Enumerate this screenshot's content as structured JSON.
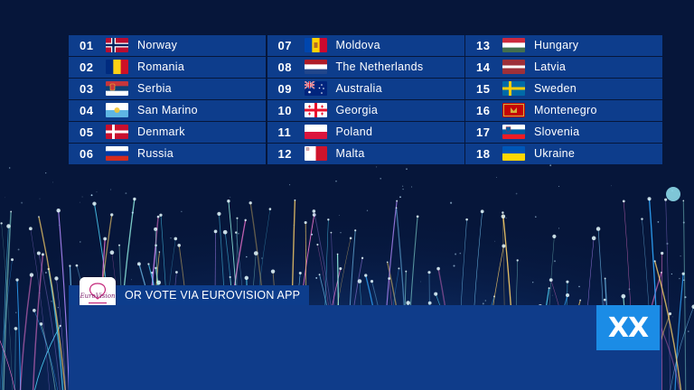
{
  "scoreboard": {
    "columns": [
      [
        {
          "rank": "01",
          "country": "Norway",
          "flag": "norway-flag"
        },
        {
          "rank": "02",
          "country": "Romania",
          "flag": "romania-flag"
        },
        {
          "rank": "03",
          "country": "Serbia",
          "flag": "serbia-flag"
        },
        {
          "rank": "04",
          "country": "San Marino",
          "flag": "san-marino-flag"
        },
        {
          "rank": "05",
          "country": "Denmark",
          "flag": "denmark-flag"
        },
        {
          "rank": "06",
          "country": "Russia",
          "flag": "russia-flag"
        }
      ],
      [
        {
          "rank": "07",
          "country": "Moldova",
          "flag": "moldova-flag"
        },
        {
          "rank": "08",
          "country": "The Netherlands",
          "flag": "netherlands-flag"
        },
        {
          "rank": "09",
          "country": "Australia",
          "flag": "australia-flag"
        },
        {
          "rank": "10",
          "country": "Georgia",
          "flag": "georgia-flag"
        },
        {
          "rank": "11",
          "country": "Poland",
          "flag": "poland-flag"
        },
        {
          "rank": "12",
          "country": "Malta",
          "flag": "malta-flag"
        }
      ],
      [
        {
          "rank": "13",
          "country": "Hungary",
          "flag": "hungary-flag"
        },
        {
          "rank": "14",
          "country": "Latvia",
          "flag": "latvia-flag"
        },
        {
          "rank": "15",
          "country": "Sweden",
          "flag": "sweden-flag"
        },
        {
          "rank": "16",
          "country": "Montenegro",
          "flag": "montenegro-flag"
        },
        {
          "rank": "17",
          "country": "Slovenia",
          "flag": "slovenia-flag"
        },
        {
          "rank": "18",
          "country": "Ukraine",
          "flag": "ukraine-flag"
        }
      ]
    ]
  },
  "vote_banner": {
    "text": "OR VOTE VIA EUROVISION APP",
    "app_icon": "eurovision-app-icon",
    "app_logo_text": "EuroVision"
  },
  "score_badge": {
    "text": "XX"
  },
  "colors": {
    "row_background": "#0d3d8c",
    "badge_background": "#1b8ce6",
    "page_background": "#06163a"
  }
}
